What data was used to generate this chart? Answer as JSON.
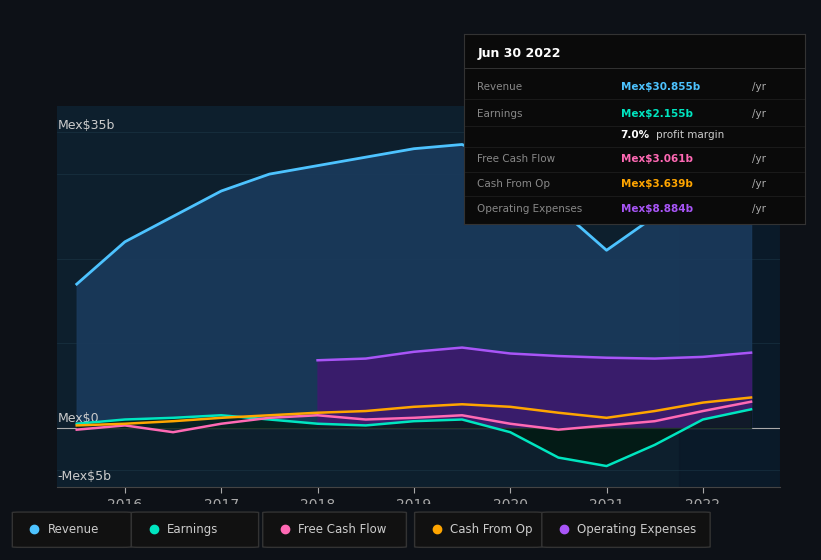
{
  "bg_color": "#0d1117",
  "plot_bg_color": "#0d1f2d",
  "grid_color": "#1e3a4a",
  "title_box_date": "Jun 30 2022",
  "ylabel_top": "Mex$35b",
  "ylabel_mid": "Mex$0",
  "ylabel_bot": "-Mex$5b",
  "x_years": [
    2015.5,
    2016,
    2016.5,
    2017,
    2017.5,
    2018,
    2018.5,
    2019,
    2019.5,
    2020,
    2020.5,
    2021,
    2021.5,
    2022,
    2022.5
  ],
  "revenue": [
    17,
    22,
    25,
    28,
    30,
    31,
    32,
    33,
    33.5,
    31,
    26,
    21,
    25,
    29,
    31
  ],
  "earnings": [
    0.5,
    1.0,
    1.2,
    1.5,
    1.0,
    0.5,
    0.3,
    0.8,
    1.0,
    -0.5,
    -3.5,
    -4.5,
    -2.0,
    1.0,
    2.2
  ],
  "fcf": [
    -0.2,
    0.3,
    -0.5,
    0.5,
    1.2,
    1.5,
    1.0,
    1.2,
    1.5,
    0.5,
    -0.2,
    0.3,
    0.8,
    2.0,
    3.1
  ],
  "cashfromop": [
    0.3,
    0.5,
    0.8,
    1.2,
    1.5,
    1.8,
    2.0,
    2.5,
    2.8,
    2.5,
    1.8,
    1.2,
    2.0,
    3.0,
    3.6
  ],
  "opex": [
    0,
    0,
    0,
    0,
    0,
    8.0,
    8.2,
    9.0,
    9.5,
    8.8,
    8.5,
    8.3,
    8.2,
    8.4,
    8.9
  ],
  "revenue_color": "#4dc3ff",
  "revenue_fill": "#1a3a5c",
  "earnings_color": "#00e5c0",
  "fcf_color": "#ff69b4",
  "cashfromop_color": "#ffa500",
  "opex_color": "#a855f7",
  "opex_fill": "#3d1a6e",
  "highlight_x_start": 2021.75,
  "legend_items": [
    {
      "label": "Revenue",
      "color": "#4dc3ff"
    },
    {
      "label": "Earnings",
      "color": "#00e5c0"
    },
    {
      "label": "Free Cash Flow",
      "color": "#ff69b4"
    },
    {
      "label": "Cash From Op",
      "color": "#ffa500"
    },
    {
      "label": "Operating Expenses",
      "color": "#a855f7"
    }
  ],
  "ylim": [
    -7,
    38
  ],
  "xlim": [
    2015.3,
    2022.8
  ],
  "box_rows": [
    {
      "label": "Revenue",
      "value": "Mex$30.855b",
      "color": "#4dc3ff",
      "suffix": " /yr"
    },
    {
      "label": "Earnings",
      "value": "Mex$2.155b",
      "color": "#00e5c0",
      "suffix": " /yr"
    },
    {
      "label": "",
      "value": "",
      "color": "",
      "suffix": ""
    },
    {
      "label": "Free Cash Flow",
      "value": "Mex$3.061b",
      "color": "#ff69b4",
      "suffix": " /yr"
    },
    {
      "label": "Cash From Op",
      "value": "Mex$3.639b",
      "color": "#ffa500",
      "suffix": " /yr"
    },
    {
      "label": "Operating Expenses",
      "value": "Mex$8.884b",
      "color": "#a855f7",
      "suffix": " /yr"
    }
  ]
}
